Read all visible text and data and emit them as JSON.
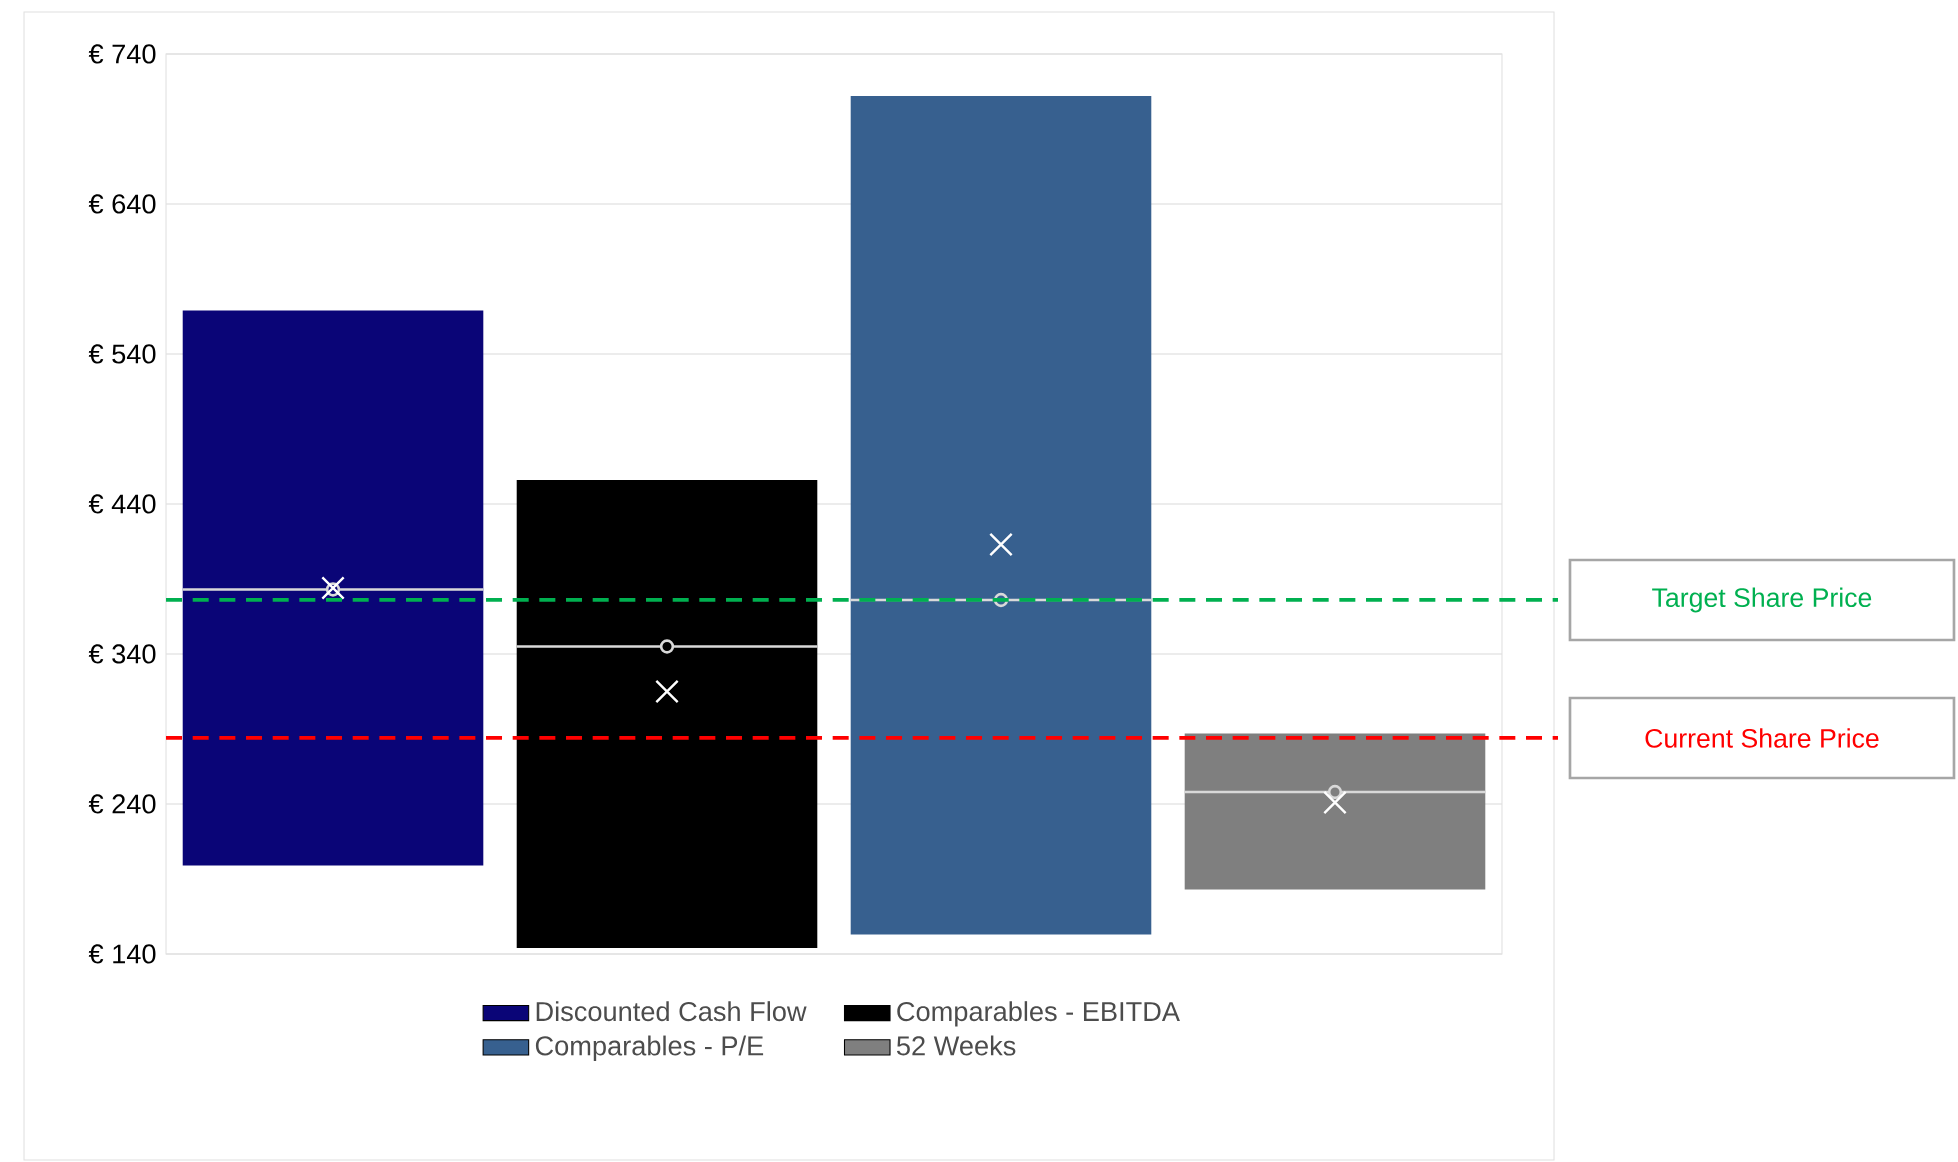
{
  "chart_data": {
    "type": "box",
    "categories": [
      null,
      null,
      null,
      null
    ],
    "series": [
      {
        "name": "Discounted Cash Flow",
        "color": "#0a0577",
        "boxes": [
          {
            "low": 199,
            "q1": 199,
            "median": 383,
            "q3": 569,
            "high": 569,
            "mean": 384
          },
          null,
          null,
          null
        ]
      },
      {
        "name": "Comparables - EBITDA",
        "color": "#000000",
        "boxes": [
          null,
          {
            "low": 144,
            "q1": 144,
            "median": 345,
            "q3": 456,
            "high": 456,
            "mean": 315
          },
          null,
          null
        ]
      },
      {
        "name": "Comparables - P/E",
        "color": "#37608f",
        "boxes": [
          null,
          null,
          {
            "low": 153,
            "q1": 153,
            "median": 376,
            "q3": 712,
            "high": 712,
            "mean": 413
          },
          null
        ]
      },
      {
        "name": "52 Weeks",
        "color": "#7f7f7f",
        "boxes": [
          null,
          null,
          null,
          {
            "low": 183,
            "q1": 183,
            "median": 248,
            "q3": 287,
            "high": 287,
            "mean": 241
          }
        ]
      }
    ],
    "ylim": [
      140,
      740
    ],
    "yticks": [
      {
        "value": 140,
        "label": "€ 140"
      },
      {
        "value": 240,
        "label": "€ 240"
      },
      {
        "value": 340,
        "label": "€ 340"
      },
      {
        "value": 440,
        "label": "€ 440"
      },
      {
        "value": 540,
        "label": "€ 540"
      },
      {
        "value": 640,
        "label": "€ 640"
      },
      {
        "value": 740,
        "label": "€ 740"
      }
    ],
    "grid": "y",
    "legend": "bottom",
    "ref_lines": [
      {
        "axis": "y",
        "value": 376,
        "label": "Target Share Price",
        "color": "#00b050",
        "line_style": "dashed"
      },
      {
        "axis": "y",
        "value": 284,
        "label": "Current Share Price",
        "color": "#ff0000",
        "line_style": "dashed"
      }
    ]
  }
}
